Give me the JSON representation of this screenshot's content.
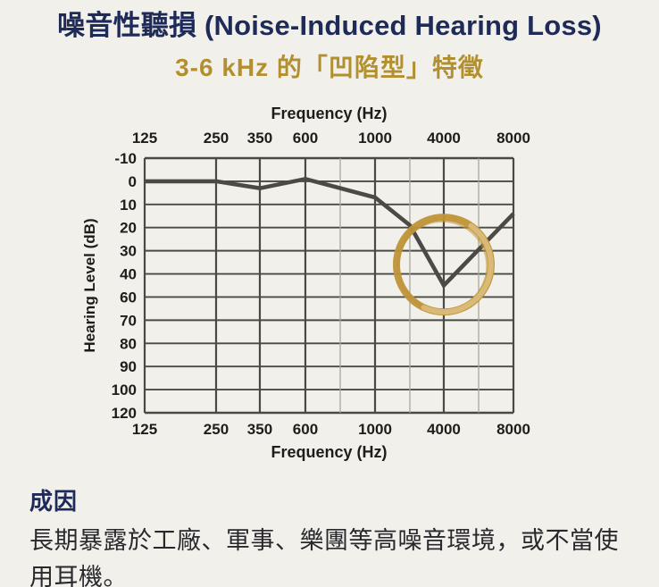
{
  "page": {
    "title": "噪音性聽損 (Noise-Induced Hearing Loss)",
    "subtitle": "3-6 kHz 的「凹陷型」特徵"
  },
  "colors": {
    "background": "#f2f0eb",
    "title_navy": "#1e2a58",
    "subtitle_gold": "#b3902f",
    "grid_major": "#4a4a45",
    "grid_minor": "#a8a8a1",
    "curve": "#4b4a44",
    "highlight_gold": "#bf9338",
    "highlight_gold_light": "#ddc084",
    "axis_text": "#1e1d1a"
  },
  "chart_data": {
    "type": "line",
    "top_axis_label": "Frequency (Hz)",
    "xlabel": "Frequency (Hz)",
    "ylabel": "Hearing Level (dB)",
    "grid": "on",
    "x_axis": {
      "ticks": [
        {
          "label": "125",
          "pos": 0
        },
        {
          "label": "250",
          "pos": 0.1937
        },
        {
          "label": "350",
          "pos": 0.3123
        },
        {
          "label": "600",
          "pos": 0.4358
        },
        {
          "label": "1000",
          "pos": 0.6247
        },
        {
          "label": "4000",
          "pos": 0.8111
        },
        {
          "label": "8000",
          "pos": 1
        }
      ],
      "minor_pos": [
        0.5303,
        0.7191,
        0.9056
      ]
    },
    "y_axis": {
      "labels": [
        "-10",
        "0",
        "10",
        "20",
        "30",
        "40",
        "60",
        "70",
        "80",
        "90",
        "100",
        "120"
      ]
    },
    "freq_pos": {
      "125": 0,
      "250": 0.1937,
      "350": 0.3123,
      "600": 0.4358,
      "1000": 0.6247,
      "2000": 0.7191,
      "4000": 0.8111,
      "8000": 1
    },
    "series": [
      {
        "points": [
          [
            125,
            0
          ],
          [
            250,
            0
          ],
          [
            350,
            3
          ],
          [
            600,
            -1
          ],
          [
            1000,
            7
          ],
          [
            2000,
            19
          ],
          [
            4000,
            50
          ],
          [
            8000,
            14
          ]
        ]
      }
    ],
    "highlight": {
      "shape": "hand-drawn-circle",
      "center_freq": 4000,
      "center_db": 36,
      "radius_px": 53
    }
  },
  "cause": {
    "heading": "成因",
    "body": "長期暴露於工廠、軍事、樂團等高噪音環境，或不當使用耳機。"
  }
}
